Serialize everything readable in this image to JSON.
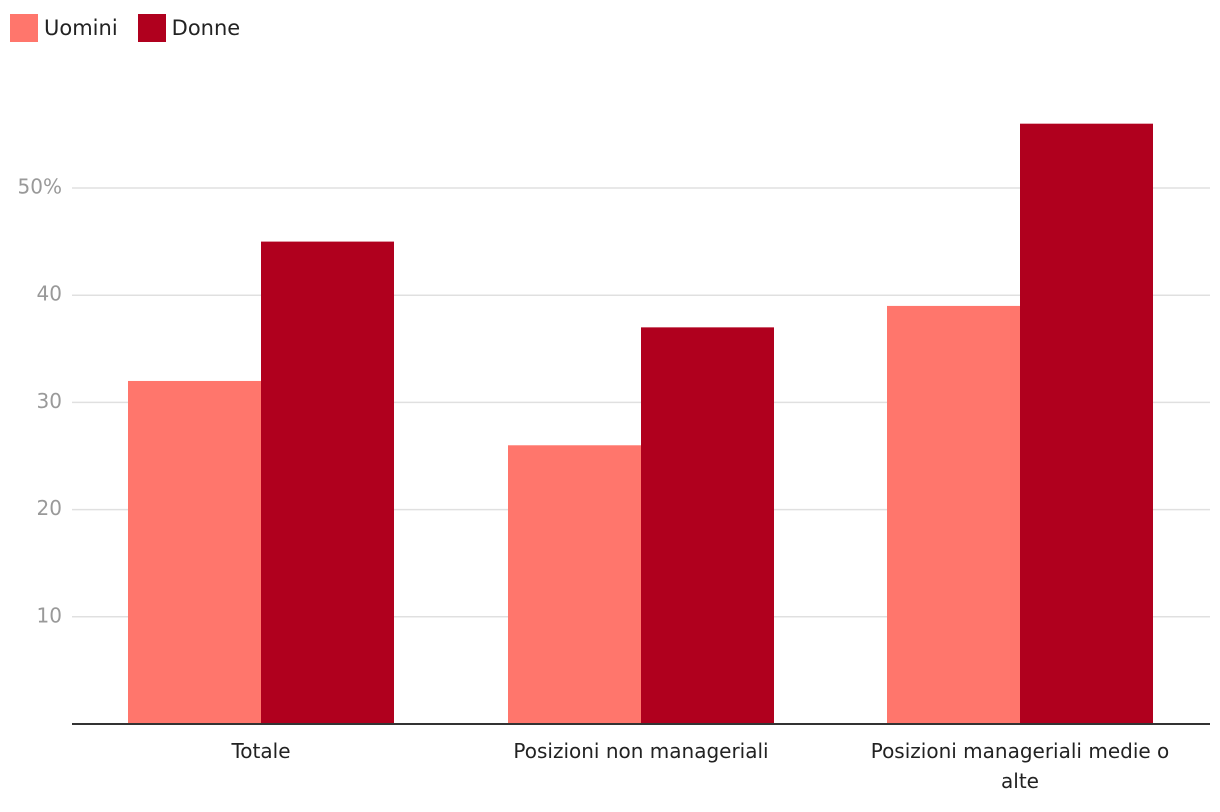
{
  "colors": {
    "uomini": "#ff766c",
    "donne": "#b0001e",
    "grid": "#e0e0e0",
    "axis": "#333333"
  },
  "legend": {
    "items": [
      {
        "label": "Uomini",
        "color": "#ff766c"
      },
      {
        "label": "Donne",
        "color": "#b0001e"
      }
    ]
  },
  "chart_data": {
    "type": "bar",
    "categories": [
      "Totale",
      "Posizioni non manageriali",
      "Posizioni manageriali medie o alte"
    ],
    "series": [
      {
        "name": "Uomini",
        "values": [
          32,
          26,
          39
        ]
      },
      {
        "name": "Donne",
        "values": [
          45,
          37,
          56
        ]
      }
    ],
    "y_ticks": [
      {
        "value": 10,
        "label": "10"
      },
      {
        "value": 20,
        "label": "20"
      },
      {
        "value": 30,
        "label": "30"
      },
      {
        "value": 40,
        "label": "40"
      },
      {
        "value": 50,
        "label": "50%"
      }
    ],
    "ylim": [
      0,
      60
    ],
    "grid": true,
    "legend_position": "top-left"
  }
}
